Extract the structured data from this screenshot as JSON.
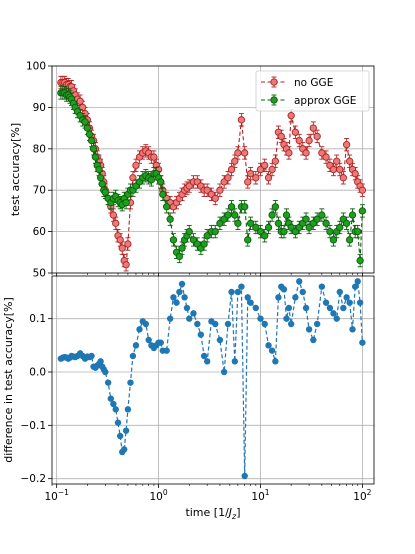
{
  "colors": {
    "no_gge_face": "#e87a7a",
    "no_gge_edge": "#b22222",
    "approx_gge_face": "#1f9e1f",
    "approx_gge_edge": "#0b5e0b",
    "difference": "#1f77b4"
  },
  "chart_data": [
    {
      "type": "line",
      "xscale": "log",
      "xlim": [
        0.09,
        130
      ],
      "ylim": [
        50,
        100
      ],
      "yticks": [
        50,
        60,
        70,
        80,
        90,
        100
      ],
      "ylabel": "test accuracy[%]",
      "grid": true,
      "legend": "top-right",
      "x": [
        0.11,
        0.115,
        0.12,
        0.125,
        0.13,
        0.135,
        0.14,
        0.146,
        0.152,
        0.16,
        0.17,
        0.18,
        0.19,
        0.2,
        0.21,
        0.22,
        0.23,
        0.24,
        0.25,
        0.26,
        0.27,
        0.28,
        0.29,
        0.3,
        0.32,
        0.34,
        0.36,
        0.38,
        0.4,
        0.42,
        0.44,
        0.46,
        0.48,
        0.5,
        0.53,
        0.56,
        0.6,
        0.65,
        0.7,
        0.75,
        0.8,
        0.85,
        0.9,
        0.95,
        1.0,
        1.05,
        1.1,
        1.2,
        1.3,
        1.4,
        1.5,
        1.6,
        1.7,
        1.8,
        1.9,
        2.0,
        2.2,
        2.4,
        2.6,
        2.8,
        3.0,
        3.3,
        3.6,
        4.0,
        4.4,
        4.8,
        5.2,
        5.6,
        6.0,
        6.5,
        7.0,
        7.5,
        8.0,
        9.0,
        10.0,
        11.0,
        12.0,
        13.0,
        14.0,
        15.0,
        16.0,
        17.0,
        18.0,
        19.0,
        20.0,
        22.0,
        24.0,
        26.0,
        28.0,
        30.0,
        33.0,
        36.0,
        40.0,
        44.0,
        48.0,
        52.0,
        56.0,
        60.0,
        65.0,
        70.0,
        75.0,
        80.0,
        85.0,
        90.0,
        95.0,
        100.0
      ],
      "series": [
        {
          "name": "no GGE",
          "values": [
            96,
            96,
            96,
            95.5,
            95.5,
            95,
            95,
            94,
            93,
            92,
            91.5,
            90,
            88.5,
            87,
            85,
            83,
            82,
            80,
            78,
            77,
            76,
            74,
            72,
            70,
            68,
            66,
            64,
            62,
            59,
            58,
            56,
            53,
            52,
            57,
            67,
            73,
            76,
            78,
            79,
            79.5,
            79,
            78,
            78,
            76,
            75,
            72,
            70,
            68,
            67,
            66,
            67,
            68,
            69,
            70,
            70.5,
            71,
            72,
            72,
            71,
            70,
            70,
            69,
            68,
            70,
            72,
            73,
            75,
            77,
            79,
            87,
            79,
            72,
            74,
            73,
            75,
            76,
            73,
            75,
            77,
            84,
            83,
            81,
            80,
            79,
            88,
            84,
            82,
            80,
            79,
            82,
            85,
            83,
            79,
            78,
            76,
            75,
            77,
            75,
            73,
            81,
            77,
            75,
            74,
            72,
            71,
            70
          ],
          "errors": [
            1.5,
            1.5,
            1.5,
            1.5,
            1.5,
            1.5,
            1.5,
            1.5,
            1.5,
            1.5,
            1.5,
            1.5,
            1.5,
            1.5,
            1.5,
            1.5,
            1.5,
            1.5,
            1.5,
            1.5,
            1.5,
            1.5,
            1.5,
            1.5,
            1.5,
            1.5,
            1.5,
            1.5,
            1.5,
            1.5,
            1.5,
            1.5,
            1.5,
            1.5,
            1.5,
            1.5,
            1.5,
            1.5,
            1.5,
            1.5,
            1.5,
            1.5,
            1.5,
            1.5,
            1.5,
            1.5,
            1.5,
            1.5,
            1.5,
            1.5,
            1.5,
            1.5,
            1.5,
            1.5,
            1.5,
            1.5,
            1.5,
            1.5,
            1.5,
            1.5,
            1.5,
            1.5,
            1.5,
            1.5,
            1.5,
            1.5,
            1.5,
            1.5,
            1.5,
            1.5,
            1.5,
            1.5,
            1.5,
            1.5,
            1.5,
            1.5,
            1.5,
            1.5,
            1.5,
            1.5,
            1.5,
            1.5,
            1.5,
            1.5,
            1.5,
            1.5,
            1.5,
            1.5,
            1.5,
            1.5,
            1.5,
            1.5,
            1.5,
            1.5,
            1.5,
            1.5,
            1.5,
            1.5,
            1.5,
            1.5,
            1.5,
            1.5,
            1.5,
            1.5,
            1.5,
            1.5
          ]
        },
        {
          "name": "approx GGE",
          "values": [
            93.5,
            93.5,
            93.5,
            93,
            93,
            92.5,
            92,
            91,
            90,
            89,
            88,
            87,
            86.5,
            85,
            83.5,
            82,
            80,
            78,
            76,
            75,
            73,
            71.5,
            70,
            69.5,
            68,
            67,
            68,
            68.5,
            67.5,
            67,
            66.5,
            68,
            67,
            69,
            70,
            70,
            71,
            72,
            73,
            73.5,
            73,
            72.5,
            74,
            74,
            73,
            72,
            69,
            66,
            63,
            58,
            55,
            54,
            56,
            58,
            59,
            60,
            58,
            57,
            56,
            57,
            59,
            60,
            60,
            62,
            63,
            64,
            66,
            64,
            62,
            66,
            66,
            58,
            62,
            61,
            60,
            59,
            61,
            64,
            66,
            62,
            60,
            60,
            64,
            62,
            61,
            60,
            61,
            62,
            63,
            61,
            62,
            63,
            64,
            62,
            60,
            58,
            60,
            61,
            63,
            62,
            58,
            64,
            60,
            60,
            53,
            65
          ],
          "errors": [
            1.5,
            1.5,
            1.5,
            1.5,
            1.5,
            1.5,
            1.5,
            1.5,
            1.5,
            1.5,
            1.5,
            1.5,
            1.5,
            1.5,
            1.5,
            1.5,
            1.5,
            1.5,
            1.5,
            1.5,
            1.5,
            1.5,
            1.5,
            1.5,
            1.5,
            1.5,
            1.5,
            1.5,
            1.5,
            1.5,
            1.5,
            1.5,
            1.5,
            1.5,
            1.5,
            1.5,
            1.5,
            1.5,
            1.5,
            1.5,
            1.5,
            1.5,
            1.5,
            1.5,
            1.5,
            1.5,
            1.5,
            1.5,
            1.5,
            1.5,
            1.5,
            1.5,
            1.5,
            1.5,
            1.5,
            1.5,
            1.5,
            1.5,
            1.5,
            1.5,
            1.5,
            1.5,
            1.5,
            1.5,
            1.5,
            1.5,
            1.5,
            1.5,
            1.5,
            1.5,
            1.5,
            1.5,
            1.5,
            1.5,
            1.5,
            1.5,
            1.5,
            1.5,
            1.5,
            1.5,
            1.5,
            1.5,
            1.5,
            1.5,
            1.5,
            1.5,
            1.5,
            1.5,
            1.5,
            1.5,
            1.5,
            1.5,
            1.5,
            1.5,
            1.5,
            1.5,
            1.5,
            1.5,
            1.5,
            1.5,
            1.5,
            1.5,
            1.5,
            1.5,
            1.5,
            1.5
          ]
        }
      ]
    },
    {
      "type": "line",
      "xscale": "log",
      "xlim": [
        0.09,
        130
      ],
      "ylim": [
        -0.21,
        0.18
      ],
      "yticks": [
        -0.2,
        -0.1,
        0.0,
        0.1
      ],
      "ytick_labels": [
        "−0.2",
        "−0.1",
        "0.0",
        "0.1"
      ],
      "ylabel": "difference in test accuracy[%]",
      "xlabel": "time [1/J_z]",
      "xlabel_prefix": "time [1/",
      "xlabel_var": "J",
      "xlabel_sub": "z",
      "xlabel_suffix": "]",
      "xticks": [
        0.1,
        1,
        10,
        100
      ],
      "xtick_bases": [
        "10",
        "10",
        "10",
        "10"
      ],
      "xtick_exponents": [
        "−1",
        "0",
        "1",
        "2"
      ],
      "grid": true,
      "x": [
        0.11,
        0.115,
        0.12,
        0.125,
        0.13,
        0.135,
        0.14,
        0.146,
        0.152,
        0.16,
        0.17,
        0.18,
        0.19,
        0.2,
        0.21,
        0.22,
        0.23,
        0.24,
        0.25,
        0.26,
        0.27,
        0.28,
        0.29,
        0.3,
        0.32,
        0.34,
        0.36,
        0.38,
        0.4,
        0.42,
        0.44,
        0.46,
        0.48,
        0.5,
        0.53,
        0.56,
        0.6,
        0.65,
        0.7,
        0.75,
        0.8,
        0.85,
        0.9,
        0.95,
        1.0,
        1.05,
        1.1,
        1.2,
        1.3,
        1.4,
        1.5,
        1.6,
        1.7,
        1.8,
        1.9,
        2.0,
        2.2,
        2.4,
        2.6,
        2.8,
        3.0,
        3.3,
        3.6,
        4.0,
        4.4,
        4.8,
        5.2,
        5.6,
        6.0,
        6.5,
        7.0,
        7.5,
        8.0,
        9.0,
        10.0,
        11.0,
        12.0,
        13.0,
        14.0,
        15.0,
        16.0,
        17.0,
        18.0,
        19.0,
        20.0,
        22.0,
        24.0,
        26.0,
        28.0,
        30.0,
        33.0,
        36.0,
        40.0,
        44.0,
        48.0,
        52.0,
        56.0,
        60.0,
        65.0,
        70.0,
        75.0,
        80.0,
        85.0,
        90.0,
        95.0,
        100.0
      ],
      "series": [
        {
          "values": [
            0.025,
            0.027,
            0.028,
            0.027,
            0.025,
            0.027,
            0.03,
            0.029,
            0.028,
            0.03,
            0.035,
            0.03,
            0.025,
            0.029,
            0.028,
            0.03,
            0.01,
            0.008,
            0.012,
            0.015,
            0.02,
            0.01,
            0.005,
            0.0,
            -0.02,
            -0.05,
            -0.06,
            -0.07,
            -0.095,
            -0.12,
            -0.15,
            -0.145,
            -0.11,
            -0.07,
            -0.02,
            0.03,
            0.05,
            0.08,
            0.095,
            0.09,
            0.06,
            0.05,
            0.045,
            0.05,
            0.055,
            0.055,
            0.04,
            0.04,
            0.1,
            0.14,
            0.13,
            0.15,
            0.165,
            0.14,
            0.12,
            0.1,
            0.11,
            0.09,
            0.07,
            0.03,
            0.02,
            0.095,
            0.09,
            0.06,
            0.0,
            0.09,
            0.15,
            0.02,
            0.15,
            0.16,
            -0.195,
            0.14,
            0.13,
            0.12,
            0.1,
            0.09,
            0.05,
            0.04,
            0.02,
            0.14,
            0.16,
            0.155,
            0.1,
            0.12,
            0.09,
            0.14,
            0.17,
            0.15,
            0.12,
            0.08,
            0.06,
            0.09,
            0.16,
            0.13,
            0.12,
            0.11,
            0.1,
            0.15,
            0.12,
            0.14,
            0.13,
            0.08,
            0.16,
            0.17,
            0.13,
            0.055
          ]
        }
      ]
    }
  ]
}
